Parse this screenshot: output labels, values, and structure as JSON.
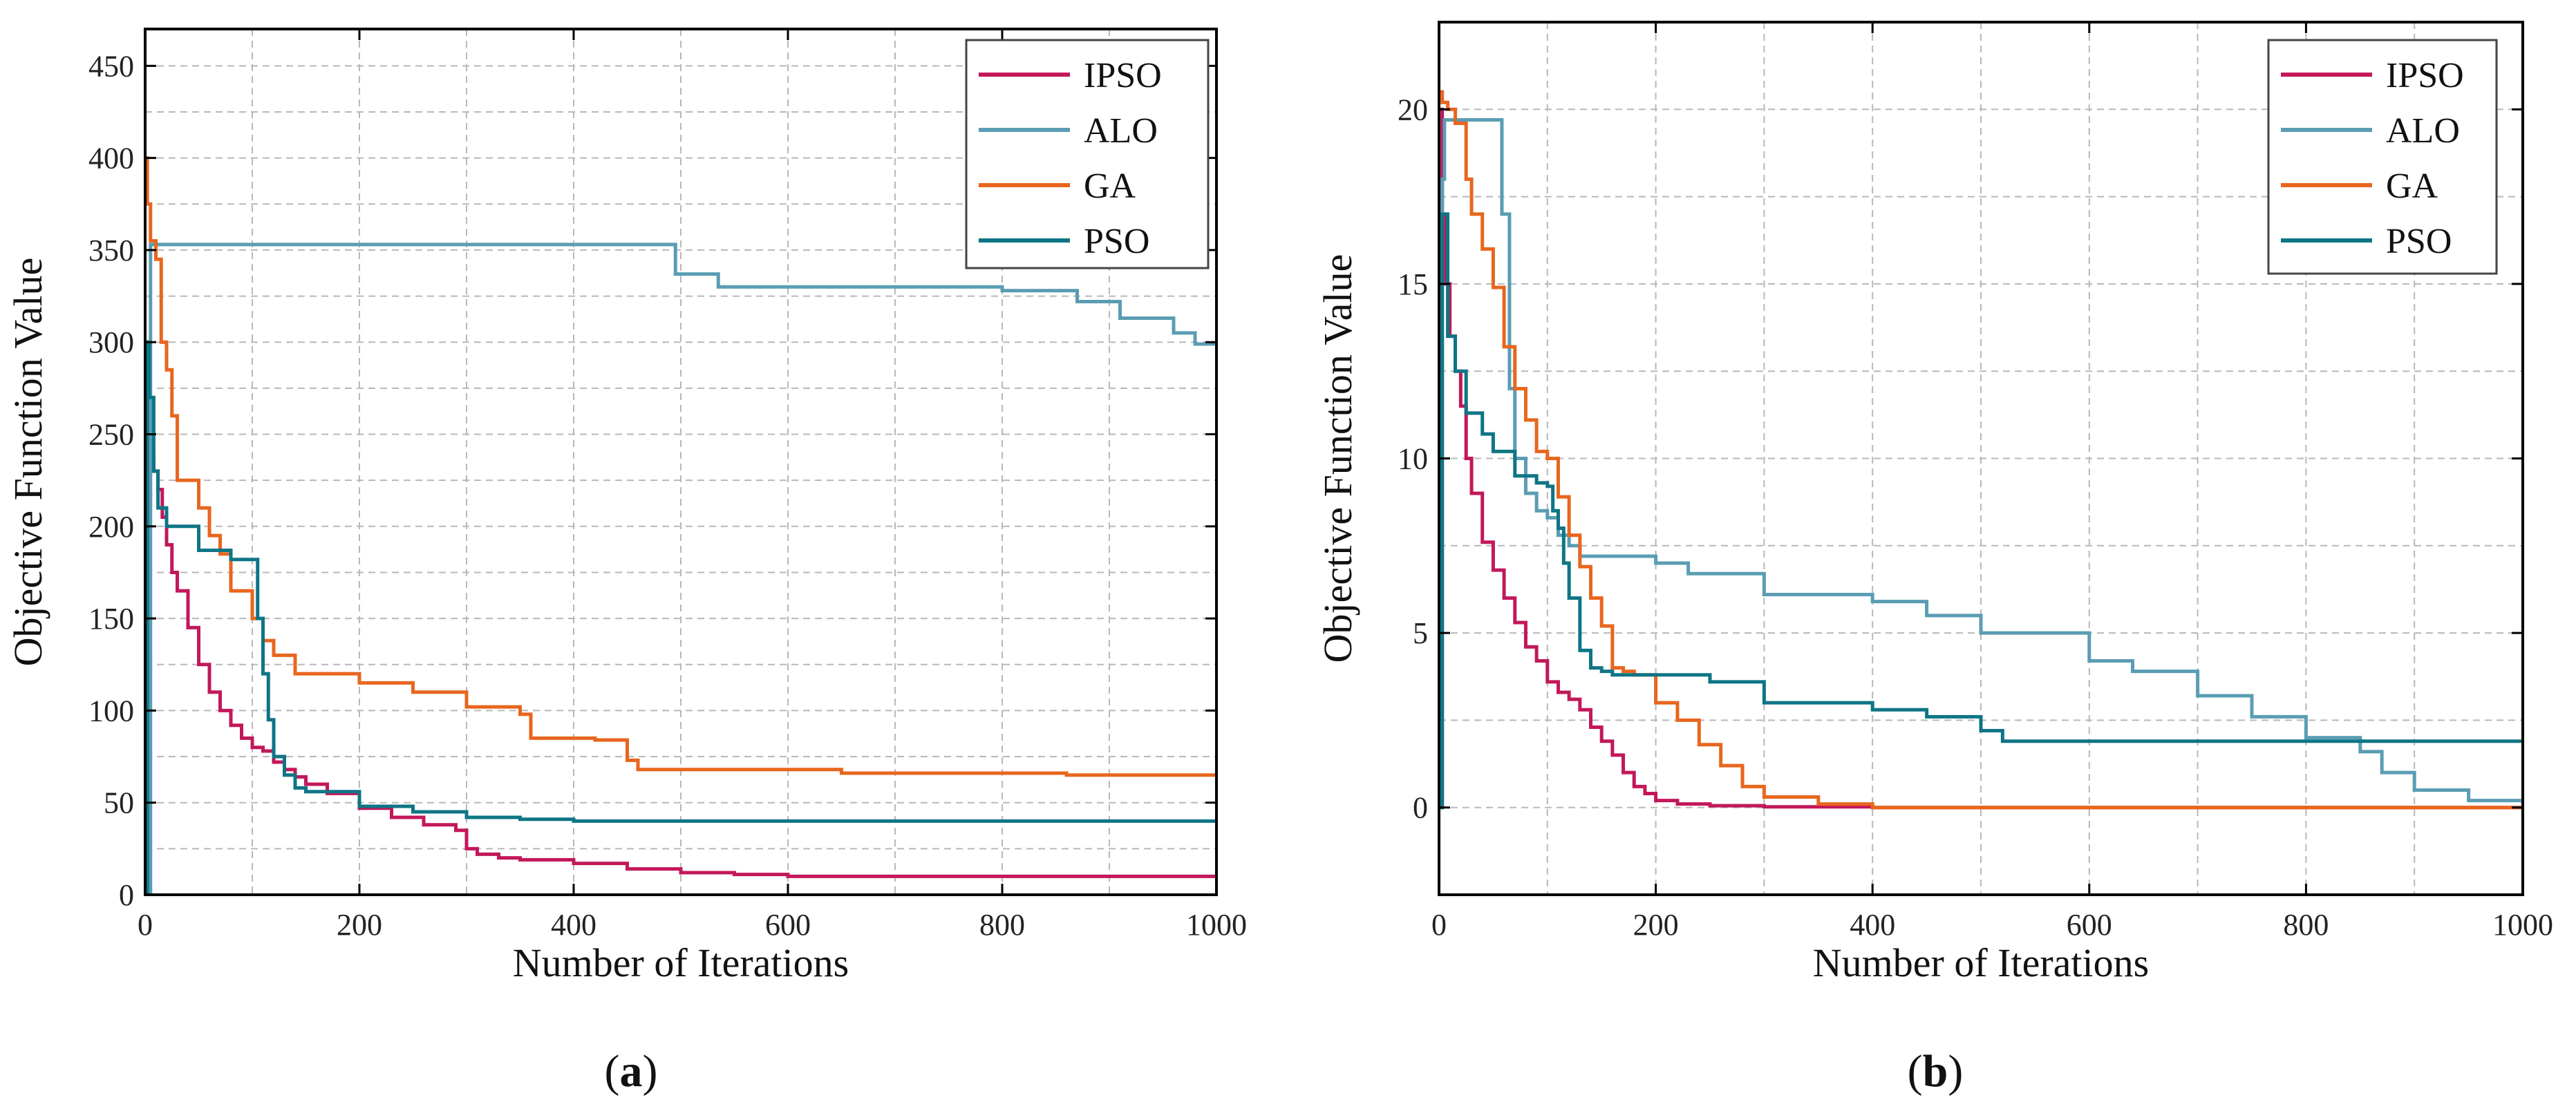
{
  "figure": {
    "panels": [
      {
        "id": "a",
        "caption_prefix": "(",
        "caption_letter": "a",
        "caption_suffix": ")"
      },
      {
        "id": "b",
        "caption_prefix": "(",
        "caption_letter": "b",
        "caption_suffix": ")"
      }
    ]
  },
  "colors": {
    "IPSO": "#C2185B",
    "ALO": "#5A9DB3",
    "GA": "#E8661E",
    "PSO": "#0E7585"
  },
  "chart_data": [
    {
      "type": "line",
      "panel": "a",
      "title": "",
      "xlabel": "Number of Iterations",
      "ylabel": "Objective Function Value",
      "xlim": [
        0,
        1000
      ],
      "ylim": [
        0,
        470
      ],
      "xticks": [
        0,
        200,
        400,
        600,
        800,
        1000
      ],
      "yticks": [
        0,
        50,
        100,
        150,
        200,
        250,
        300,
        350,
        400,
        450
      ],
      "legend": [
        "IPSO",
        "ALO",
        "GA",
        "PSO"
      ],
      "legend_position": "top-right",
      "series": [
        {
          "name": "IPSO",
          "x": [
            0,
            2,
            5,
            8,
            12,
            16,
            20,
            25,
            30,
            40,
            50,
            60,
            70,
            80,
            90,
            100,
            110,
            120,
            130,
            140,
            150,
            170,
            200,
            230,
            260,
            290,
            300,
            310,
            330,
            350,
            400,
            450,
            500,
            550,
            600,
            700,
            800,
            900,
            1000
          ],
          "y": [
            300,
            260,
            240,
            230,
            220,
            205,
            190,
            175,
            165,
            145,
            125,
            110,
            100,
            92,
            85,
            80,
            78,
            72,
            68,
            64,
            60,
            55,
            47,
            42,
            38,
            35,
            25,
            22,
            20,
            19,
            17,
            14,
            12,
            11,
            10,
            10,
            10,
            10,
            10
          ]
        },
        {
          "name": "ALO",
          "x": [
            0,
            5,
            490,
            495,
            530,
            535,
            600,
            660,
            700,
            760,
            800,
            840,
            870,
            900,
            910,
            940,
            960,
            980,
            1000
          ],
          "y": [
            0,
            353,
            353,
            337,
            337,
            330,
            330,
            330,
            330,
            330,
            328,
            328,
            322,
            322,
            313,
            313,
            305,
            299,
            299
          ]
        },
        {
          "name": "GA",
          "x": [
            0,
            2,
            5,
            10,
            15,
            20,
            25,
            30,
            50,
            60,
            70,
            80,
            100,
            110,
            120,
            140,
            200,
            250,
            300,
            350,
            360,
            420,
            450,
            460,
            500,
            550,
            600,
            650,
            700,
            800,
            850,
            860,
            900,
            1000
          ],
          "y": [
            400,
            375,
            355,
            345,
            300,
            285,
            260,
            225,
            210,
            195,
            185,
            165,
            150,
            138,
            130,
            120,
            115,
            110,
            102,
            98,
            85,
            84,
            73,
            68,
            68,
            68,
            68,
            66,
            66,
            66,
            66,
            65,
            65,
            65
          ]
        },
        {
          "name": "PSO",
          "x": [
            0,
            2,
            4,
            8,
            12,
            20,
            30,
            50,
            60,
            80,
            100,
            105,
            110,
            115,
            120,
            130,
            140,
            150,
            200,
            250,
            300,
            350,
            400,
            500,
            600,
            700,
            800,
            1000
          ],
          "y": [
            0,
            300,
            270,
            230,
            210,
            200,
            200,
            187,
            187,
            182,
            182,
            150,
            120,
            95,
            75,
            65,
            58,
            56,
            48,
            45,
            42,
            41,
            40,
            40,
            40,
            40,
            40,
            40
          ]
        }
      ]
    },
    {
      "type": "line",
      "panel": "b",
      "title": "",
      "xlabel": "Number of Iterations",
      "ylabel": "Objective Function Value",
      "xlim": [
        0,
        1000
      ],
      "ylim": [
        -2.5,
        22.5
      ],
      "xticks": [
        0,
        200,
        400,
        600,
        800,
        1000
      ],
      "yticks": [
        0,
        5,
        10,
        15,
        20
      ],
      "legend": [
        "IPSO",
        "ALO",
        "GA",
        "PSO"
      ],
      "legend_position": "top-right",
      "series": [
        {
          "name": "IPSO",
          "x": [
            0,
            3,
            6,
            10,
            15,
            20,
            25,
            30,
            40,
            50,
            60,
            70,
            80,
            90,
            100,
            110,
            120,
            130,
            140,
            150,
            160,
            170,
            180,
            190,
            200,
            220,
            250,
            300,
            400,
            500,
            1000
          ],
          "y": [
            20,
            17,
            15,
            13.5,
            12.5,
            11.5,
            10,
            9,
            7.6,
            6.8,
            6,
            5.3,
            4.6,
            4.2,
            3.6,
            3.3,
            3.1,
            2.8,
            2.3,
            1.9,
            1.5,
            1.0,
            0.6,
            0.4,
            0.2,
            0.1,
            0.05,
            0.02,
            0,
            0,
            0
          ]
        },
        {
          "name": "ALO",
          "x": [
            0,
            3,
            5,
            55,
            58,
            65,
            70,
            80,
            90,
            100,
            110,
            120,
            130,
            150,
            200,
            230,
            300,
            400,
            450,
            500,
            600,
            640,
            700,
            750,
            800,
            850,
            870,
            900,
            950,
            1000
          ],
          "y": [
            0,
            18,
            19.7,
            19.7,
            17,
            12,
            10,
            9,
            8.5,
            8.3,
            7.8,
            7.5,
            7.2,
            7.2,
            7,
            6.7,
            6.1,
            5.9,
            5.5,
            5,
            4.2,
            3.9,
            3.2,
            2.6,
            2.0,
            1.6,
            1.0,
            0.5,
            0.2,
            0.1
          ]
        },
        {
          "name": "GA",
          "x": [
            0,
            3,
            8,
            15,
            25,
            30,
            40,
            50,
            60,
            70,
            80,
            90,
            100,
            110,
            120,
            130,
            140,
            150,
            160,
            170,
            180,
            200,
            220,
            240,
            260,
            280,
            300,
            350,
            400,
            500,
            1000
          ],
          "y": [
            20.5,
            20.2,
            20,
            19.6,
            18,
            17,
            16,
            14.9,
            13.2,
            12,
            11.1,
            10.2,
            10,
            8.9,
            7.8,
            6.9,
            6.0,
            5.2,
            4.0,
            3.9,
            3.8,
            3.0,
            2.5,
            1.8,
            1.2,
            0.6,
            0.3,
            0.1,
            0,
            0,
            0
          ]
        },
        {
          "name": "PSO",
          "x": [
            0,
            3,
            8,
            15,
            25,
            40,
            50,
            60,
            70,
            80,
            90,
            100,
            105,
            110,
            115,
            120,
            130,
            140,
            150,
            160,
            200,
            250,
            300,
            350,
            400,
            450,
            500,
            520,
            600,
            700,
            800,
            900,
            1000
          ],
          "y": [
            0,
            17,
            13.5,
            12.5,
            11.3,
            10.7,
            10.2,
            10.2,
            9.5,
            9.5,
            9.3,
            9.2,
            8.5,
            8,
            7,
            6,
            4.5,
            4.0,
            3.9,
            3.8,
            3.8,
            3.6,
            3.0,
            3.0,
            2.8,
            2.6,
            2.2,
            1.9,
            1.9,
            1.9,
            1.9,
            1.9,
            1.9
          ]
        }
      ]
    }
  ]
}
